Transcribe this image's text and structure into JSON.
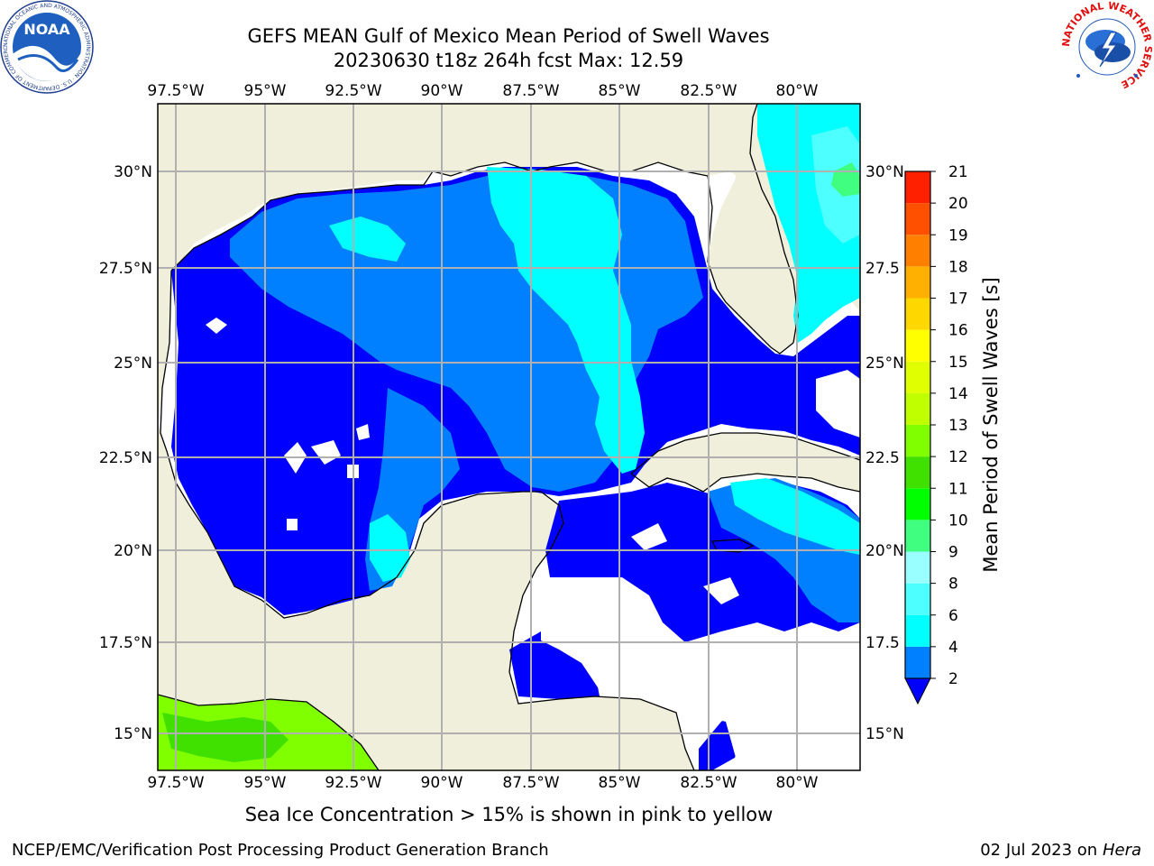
{
  "header": {
    "title_line1": "GEFS MEAN Gulf of Mexico Mean Period of Swell Waves",
    "title_line2": "20230630 t18z 264h fcst   Max: 12.59"
  },
  "logos": {
    "noaa_text": "NOAA",
    "noaa_ring_text": "NATIONAL OCEANIC AND ATMOSPHERIC ADMINISTRATION · U.S. DEPARTMENT OF COMMERCE",
    "nws_ring_text": "NATIONAL WEATHER SERVICE"
  },
  "map": {
    "lon_labels": [
      "97.5°W",
      "95°W",
      "92.5°W",
      "90°W",
      "87.5°W",
      "85°W",
      "82.5°W",
      "80°W"
    ],
    "lat_labels_left": [
      "30°N",
      "27.5°N",
      "25°N",
      "22.5°N",
      "20°N",
      "17.5°N",
      "15°N"
    ],
    "lat_labels_right": [
      "30°N",
      "27.5",
      "25°N",
      "22.5",
      "20°N",
      "17.5",
      "15°N"
    ],
    "land_color": "#efefdc",
    "grid_color": "#b0b0b0"
  },
  "colorbar": {
    "label": "Mean Period of Swell Waves [s]",
    "ticks": [
      "2",
      "4",
      "6",
      "8",
      "9",
      "10",
      "11",
      "12",
      "13",
      "14",
      "15",
      "16",
      "17",
      "18",
      "19",
      "20",
      "21"
    ],
    "colors": [
      "#0000ff",
      "#0080ff",
      "#00ffff",
      "#4dffff",
      "#99ffff",
      "#40ff80",
      "#00ff00",
      "#40e000",
      "#80ff00",
      "#c0ff00",
      "#e0ff00",
      "#ffff00",
      "#ffd700",
      "#ffb000",
      "#ff8000",
      "#ff5000",
      "#ff2000",
      "#ff0000"
    ]
  },
  "subtitle": "Sea Ice Concentration > 15% is shown in pink to yellow",
  "footer": {
    "left": "NCEP/EMC/Verification Post Processing Product Generation Branch",
    "right_prefix": "02 Jul 2023 on ",
    "right_host": "Hera"
  }
}
